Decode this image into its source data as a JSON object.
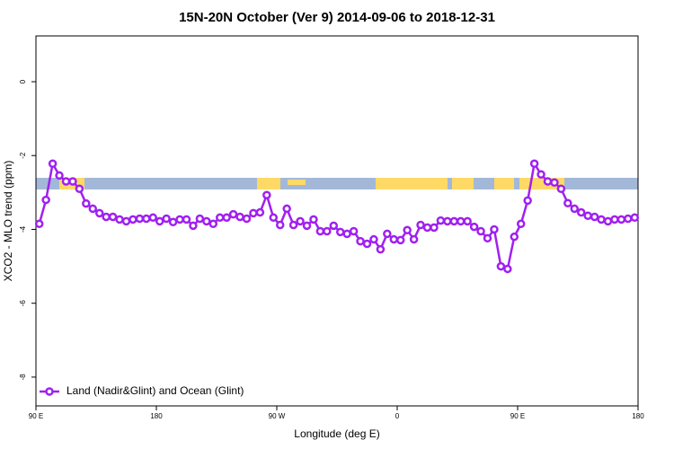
{
  "chart_data": {
    "type": "line",
    "title": "15N-20N October (Ver 9)   2014-09-06 to 2018-12-31",
    "x_label": "Longitude (deg E)",
    "y_label": "XCO2 - MLO trend (ppm)",
    "x": [
      92.5,
      97.5,
      102.5,
      107.5,
      112.5,
      117.5,
      122.5,
      127.5,
      132.5,
      137.5,
      142.5,
      147.5,
      152.5,
      157.5,
      162.5,
      167.5,
      172.5,
      177.5,
      182.5,
      187.5,
      192.5,
      197.5,
      202.5,
      207.5,
      212.5,
      217.5,
      222.5,
      227.5,
      232.5,
      237.5,
      242.5,
      247.5,
      252.5,
      257.5,
      262.5,
      267.5,
      272.5,
      277.5,
      282.5,
      287.5,
      292.5,
      297.5,
      302.5,
      307.5,
      312.5,
      317.5,
      322.5,
      327.5,
      332.5,
      337.5,
      342.5,
      347.5,
      352.5,
      357.5,
      362.5,
      367.5,
      372.5,
      377.5,
      382.5,
      387.5,
      392.5,
      397.5,
      402.5,
      407.5,
      412.5,
      417.5,
      422.5,
      427.5,
      432.5,
      437.5,
      442.5,
      447.5,
      452.5,
      457.5,
      462.5,
      467.5,
      472.5,
      477.5,
      482.5,
      487.5,
      492.5,
      497.5,
      502.5,
      507.5,
      512.5,
      517.5,
      522.5,
      527.5,
      532.5,
      537.5
    ],
    "series": [
      {
        "name": "Land (Nadir&Glint) and Ocean (Glint)",
        "color": "#a020f0",
        "values": [
          -3.85,
          -3.2,
          -2.22,
          -2.54,
          -2.7,
          -2.7,
          -2.9,
          -3.3,
          -3.44,
          -3.56,
          -3.66,
          -3.66,
          -3.73,
          -3.78,
          -3.73,
          -3.71,
          -3.71,
          -3.68,
          -3.78,
          -3.71,
          -3.8,
          -3.73,
          -3.73,
          -3.9,
          -3.71,
          -3.78,
          -3.85,
          -3.68,
          -3.68,
          -3.59,
          -3.66,
          -3.71,
          -3.56,
          -3.54,
          -3.07,
          -3.68,
          -3.88,
          -3.44,
          -3.88,
          -3.78,
          -3.9,
          -3.73,
          -4.05,
          -4.05,
          -3.9,
          -4.07,
          -4.12,
          -4.05,
          -4.32,
          -4.39,
          -4.27,
          -4.54,
          -4.12,
          -4.27,
          -4.29,
          -4.02,
          -4.27,
          -3.88,
          -3.95,
          -3.95,
          -3.76,
          -3.78,
          -3.78,
          -3.78,
          -3.78,
          -3.93,
          -4.05,
          -4.24,
          -4.0,
          -5.0,
          -5.07,
          -4.2,
          -3.85,
          -3.22,
          -2.22,
          -2.51,
          -2.7,
          -2.73,
          -2.9,
          -3.29,
          -3.44,
          -3.54,
          -3.63,
          -3.66,
          -3.73,
          -3.78,
          -3.73,
          -3.73,
          -3.71,
          -3.68
        ]
      }
    ],
    "xlim": [
      90,
      540
    ],
    "xticks": [
      {
        "value": 90,
        "label": "90 E"
      },
      {
        "value": 180,
        "label": "180"
      },
      {
        "value": 270,
        "label": "90 W"
      },
      {
        "value": 360,
        "label": "0"
      },
      {
        "value": 450,
        "label": "90 E"
      },
      {
        "value": 540,
        "label": "180"
      }
    ],
    "ylim": [
      -8.78,
      1.24
    ],
    "yticks": [
      -8,
      -6,
      -4,
      -2,
      0
    ],
    "legend": "bottom-left"
  }
}
